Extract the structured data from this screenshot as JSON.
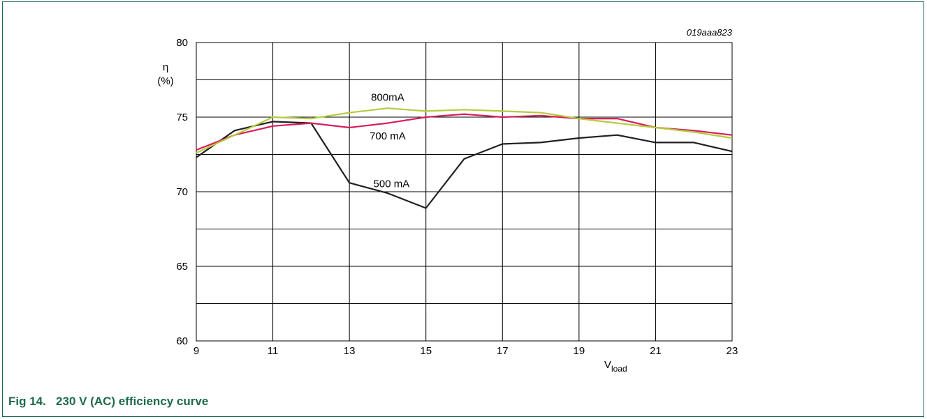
{
  "figure_id": "019aaa823",
  "caption": {
    "number": "Fig 14.",
    "title": "230 V (AC) efficiency curve"
  },
  "colors": {
    "frame": "#1f6a4a",
    "caption": "#1f6a4a",
    "grid": "#000000"
  },
  "chart_data": {
    "type": "line",
    "xlabel": "V",
    "xlabel_sub": "load",
    "ylabel": "η",
    "ylabel_unit": "(%)",
    "xlim": [
      9,
      23
    ],
    "ylim": [
      60,
      80
    ],
    "x_ticks": [
      9,
      11,
      13,
      15,
      17,
      19,
      21,
      23
    ],
    "y_ticks": [
      60,
      65,
      70,
      75,
      80
    ],
    "x_grid_step": 2,
    "y_grid_step": 2.5,
    "grid": true,
    "series": [
      {
        "name": "500 mA",
        "color": "#231f20",
        "x": [
          9,
          10,
          11,
          12,
          13,
          14,
          15,
          16,
          17,
          18,
          19,
          20,
          21,
          22,
          23
        ],
        "y": [
          72.3,
          74.1,
          74.7,
          74.6,
          70.6,
          69.9,
          68.9,
          72.2,
          73.2,
          73.3,
          73.6,
          73.8,
          73.3,
          73.3,
          72.7
        ]
      },
      {
        "name": "700 mA",
        "color": "#d81e5b",
        "x": [
          9,
          10,
          11,
          12,
          13,
          14,
          15,
          16,
          17,
          18,
          19,
          20,
          21,
          22,
          23
        ],
        "y": [
          72.8,
          73.8,
          74.4,
          74.6,
          74.3,
          74.6,
          75.0,
          75.2,
          75.0,
          75.1,
          74.9,
          74.9,
          74.3,
          74.1,
          73.8
        ]
      },
      {
        "name": "800mA",
        "color": "#b5cc3d",
        "x": [
          9,
          10,
          11,
          12,
          13,
          14,
          15,
          16,
          17,
          18,
          19,
          20,
          21,
          22,
          23
        ],
        "y": [
          72.6,
          73.8,
          75.0,
          74.9,
          75.3,
          75.6,
          75.4,
          75.5,
          75.4,
          75.3,
          74.9,
          74.6,
          74.3,
          74.0,
          73.6
        ]
      }
    ]
  }
}
